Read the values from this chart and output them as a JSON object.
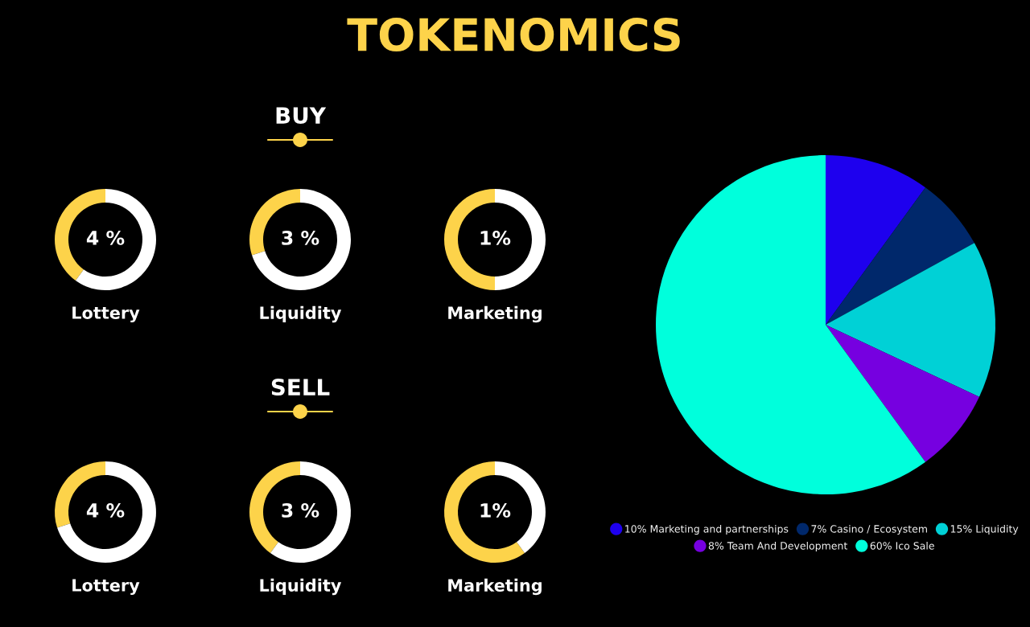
{
  "chart_data": [
    {
      "type": "other",
      "title": "TOKENOMICS"
    },
    {
      "type": "other",
      "title": "BUY"
    },
    {
      "type": "donut",
      "title": "Lottery",
      "categories": [
        null,
        null
      ],
      "values": [
        40,
        60
      ],
      "colors": [
        "#fdd34a",
        "#ffffff"
      ],
      "annotations": [
        "4 %"
      ]
    },
    {
      "type": "donut",
      "title": "Liquidity",
      "categories": [
        null,
        null
      ],
      "values": [
        30,
        70
      ],
      "colors": [
        "#fdd34a",
        "#ffffff"
      ],
      "annotations": [
        "3 %"
      ]
    },
    {
      "type": "donut",
      "title": "Marketing",
      "categories": [
        null,
        null
      ],
      "values": [
        50,
        50
      ],
      "colors": [
        "#fdd34a",
        "#ffffff"
      ],
      "annotations": [
        "1%"
      ]
    },
    {
      "type": "other",
      "title": "SELL"
    },
    {
      "type": "donut",
      "title": "Lottery",
      "categories": [
        null,
        null
      ],
      "values": [
        30,
        70
      ],
      "colors": [
        "#fdd34a",
        "#ffffff"
      ],
      "annotations": [
        "4 %"
      ]
    },
    {
      "type": "donut",
      "title": "Liquidity",
      "categories": [
        null,
        null
      ],
      "values": [
        40,
        60
      ],
      "colors": [
        "#fdd34a",
        "#ffffff"
      ],
      "annotations": [
        "3 %"
      ]
    },
    {
      "type": "donut",
      "title": "Marketing",
      "categories": [
        null,
        null
      ],
      "values": [
        60,
        40
      ],
      "colors": [
        "#fdd34a",
        "#ffffff"
      ],
      "annotations": [
        "1%"
      ]
    },
    {
      "type": "pie",
      "categories": [
        "10% Marketing and partnerships",
        "7% Casino / Ecosystem",
        "15% Liquidity",
        "8% Team And Development",
        "60% Ico Sale"
      ],
      "values": [
        10,
        7,
        15,
        8,
        60
      ],
      "colors": [
        "#1e00ee",
        "#00286b",
        "#00d1d6",
        "#7600e0",
        "#00ffdc"
      ],
      "legend": "bottom"
    }
  ]
}
